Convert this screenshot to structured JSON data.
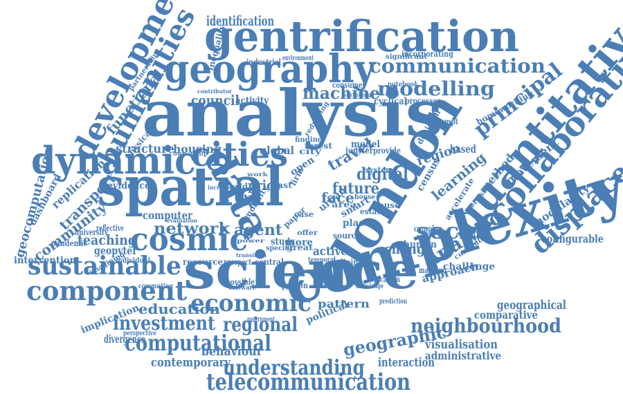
{
  "color": "#4a7eb5",
  "words": [
    "analysis",
    "spatial",
    "science",
    "complexity",
    "london",
    "data",
    "gentrification",
    "geography",
    "dynamic",
    "cities",
    "quantitative",
    "collaborative",
    "cosmic",
    "development",
    "humanities",
    "displacement",
    "sustainable",
    "component",
    "economic",
    "computational",
    "telecommunication",
    "neighbourhood",
    "understanding",
    "investment",
    "regional",
    "communication",
    "modelling",
    "machine",
    "social",
    "principal",
    "analytic",
    "digital",
    "future",
    "travel",
    "network",
    "agent",
    "teaching",
    "education",
    "geographic",
    "visualisation",
    "administrative",
    "interaction",
    "contemporary",
    "behaviour",
    "geocomputation",
    "transport",
    "community",
    "replication",
    "functional",
    "identification",
    "council",
    "structure",
    "housing",
    "global",
    "change",
    "learning",
    "method",
    "movement",
    "modularity",
    "configurable",
    "geographical",
    "comparative",
    "approach",
    "challenge",
    "region",
    "based",
    "census",
    "human",
    "active",
    "place",
    "pattern",
    "political",
    "divergence",
    "implication",
    "intervention",
    "dashboard",
    "computer",
    "evidence",
    "reflective",
    "geopyter",
    "price",
    "world",
    "more",
    "face",
    "urban",
    "smart",
    "estate",
    "model",
    "activity",
    "consumer",
    "notebook",
    "cyclical",
    "processes",
    "decision",
    "attempt",
    "significant",
    "incorporating",
    "industrial",
    "environment",
    "inequality",
    "physical",
    "partnership",
    "pandemic",
    "university",
    "individual",
    "imagining",
    "commuting",
    "resource",
    "prospect",
    "central",
    "possible",
    "python",
    "location",
    "britain",
    "temporal",
    "software",
    "government",
    "perspective",
    "knowledge",
    "prediction",
    "complex",
    "mapping",
    "curriculum",
    "accelerate",
    "persistent",
    "homeworking",
    "study",
    "paper",
    "source",
    "city",
    "open",
    "firm",
    "mobility",
    "forest",
    "jupyter",
    "provide",
    "system",
    "house",
    "area",
    "case",
    "offer",
    "great",
    "specific",
    "finding",
    "shrinking",
    "work",
    "power",
    "redrawing",
    "contributor",
    "ownership",
    "evaluation",
    "transition",
    "increase",
    "house",
    "past"
  ]
}
